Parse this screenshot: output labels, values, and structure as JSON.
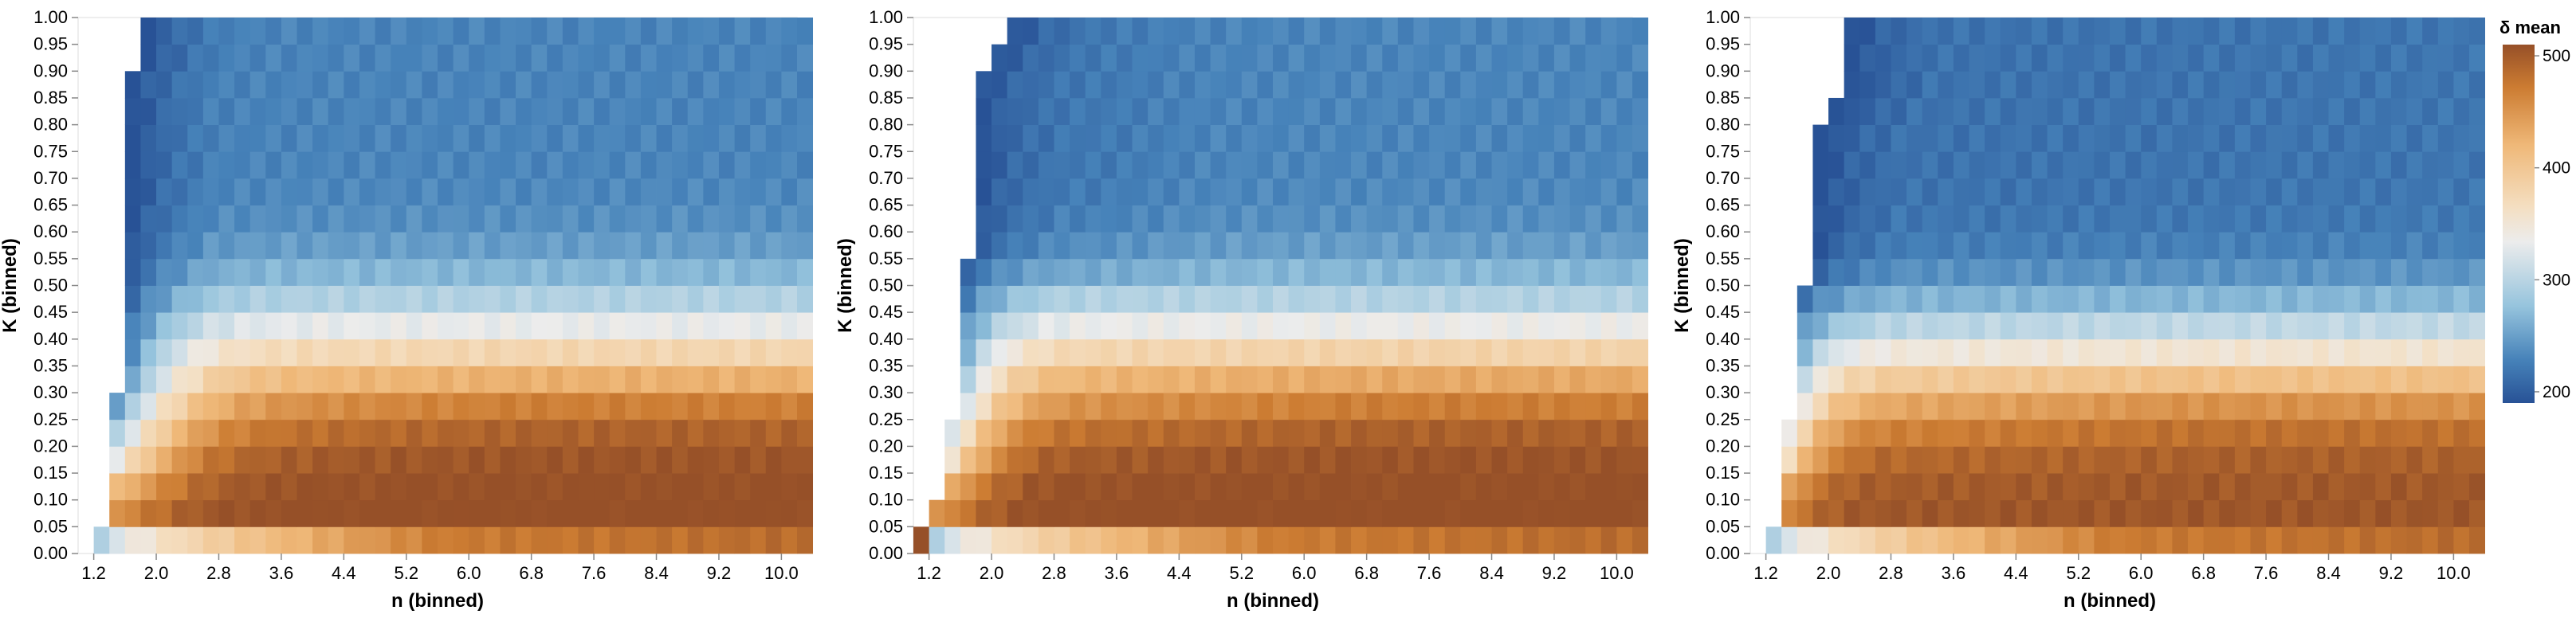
{
  "legend": {
    "title": "δ mean",
    "ticks": [
      "500",
      "400",
      "300",
      "200"
    ],
    "min": 190,
    "max": 510
  },
  "chart_data": [
    {
      "type": "heatmap",
      "xlabel": "n (binned)",
      "ylabel": "K (binned)",
      "x_ticks": [
        "1.2",
        "2.0",
        "2.8",
        "3.6",
        "4.4",
        "5.2",
        "6.0",
        "6.8",
        "7.6",
        "8.4",
        "9.2",
        "10.0"
      ],
      "y_ticks": [
        "0.00",
        "0.05",
        "0.10",
        "0.15",
        "0.20",
        "0.25",
        "0.30",
        "0.35",
        "0.40",
        "0.45",
        "0.50",
        "0.55",
        "0.60",
        "0.65",
        "0.70",
        "0.75",
        "0.80",
        "0.85",
        "0.90",
        "0.95",
        "1.00"
      ],
      "xlim": [
        1.0,
        10.2
      ],
      "ylim": [
        0.0,
        1.0
      ],
      "x_bin_width": 0.2,
      "y_bin_width": 0.05,
      "colorscale": "blue-white-orange",
      "value_range": [
        190,
        510
      ],
      "boundary_n": [
        1.2,
        1.4,
        1.4,
        1.4,
        1.4,
        1.4,
        1.6,
        1.6,
        1.6,
        1.6,
        1.6,
        1.6,
        1.6,
        1.6,
        1.6,
        1.6,
        1.6,
        1.6,
        1.8,
        1.8
      ],
      "hole_cells": [
        [
          1.6,
          0.9
        ]
      ],
      "params": {
        "a": 230,
        "b": 285,
        "nGrow": 1.6,
        "p": 3.2,
        "q": 1.0,
        "r": 0.42,
        "s": 1.0,
        "tK": 0.11,
        "bias": 0,
        "edgeAmp": 0
      }
    },
    {
      "type": "heatmap",
      "xlabel": "n (binned)",
      "ylabel": "K (binned)",
      "x_ticks": [
        "1.2",
        "2.0",
        "2.8",
        "3.6",
        "4.4",
        "5.2",
        "6.0",
        "6.8",
        "7.6",
        "8.4",
        "9.2",
        "10.0"
      ],
      "y_ticks": [
        "0.00",
        "0.05",
        "0.10",
        "0.15",
        "0.20",
        "0.25",
        "0.30",
        "0.35",
        "0.40",
        "0.45",
        "0.50",
        "0.55",
        "0.60",
        "0.65",
        "0.70",
        "0.75",
        "0.80",
        "0.85",
        "0.90",
        "0.95",
        "1.00"
      ],
      "xlim": [
        1.0,
        10.2
      ],
      "ylim": [
        0.0,
        1.0
      ],
      "x_bin_width": 0.2,
      "y_bin_width": 0.05,
      "colorscale": "blue-white-orange",
      "value_range": [
        190,
        510
      ],
      "boundary_n": [
        1.0,
        1.2,
        1.4,
        1.4,
        1.4,
        1.6,
        1.6,
        1.6,
        1.6,
        1.6,
        1.6,
        1.8,
        1.8,
        1.8,
        1.8,
        1.8,
        1.8,
        1.8,
        2.0,
        2.2
      ],
      "hole_cells": [],
      "params": {
        "a": 225,
        "b": 290,
        "nGrow": 2.3,
        "p": 3.3,
        "q": 0.9,
        "r": 0.42,
        "s": 0.7,
        "tK": 0.11,
        "bias": 6,
        "edgeAmp": 10
      }
    },
    {
      "type": "heatmap",
      "xlabel": "n (binned)",
      "ylabel": "K (binned)",
      "x_ticks": [
        "1.2",
        "2.0",
        "2.8",
        "3.6",
        "4.4",
        "5.2",
        "6.0",
        "6.8",
        "7.6",
        "8.4",
        "9.2",
        "10.0"
      ],
      "y_ticks": [
        "0.00",
        "0.05",
        "0.10",
        "0.15",
        "0.20",
        "0.25",
        "0.30",
        "0.35",
        "0.40",
        "0.45",
        "0.50",
        "0.55",
        "0.60",
        "0.65",
        "0.70",
        "0.75",
        "0.80",
        "0.85",
        "0.90",
        "0.95",
        "1.00"
      ],
      "xlim": [
        1.0,
        10.2
      ],
      "ylim": [
        0.0,
        1.0
      ],
      "x_bin_width": 0.2,
      "y_bin_width": 0.05,
      "colorscale": "blue-white-orange",
      "value_range": [
        190,
        510
      ],
      "boundary_n": [
        1.2,
        1.4,
        1.4,
        1.4,
        1.4,
        1.6,
        1.6,
        1.6,
        1.6,
        1.6,
        1.8,
        1.8,
        1.8,
        1.8,
        1.8,
        1.8,
        2.0,
        2.2,
        2.2,
        2.2
      ],
      "hole_cells": [],
      "params": {
        "a": 215,
        "b": 290,
        "nGrow": 9.0,
        "p": 3.4,
        "q": 0.8,
        "r": 0.4,
        "s": 0.55,
        "tK": 0.11,
        "bias": 4,
        "edgeAmp": 0
      }
    }
  ]
}
